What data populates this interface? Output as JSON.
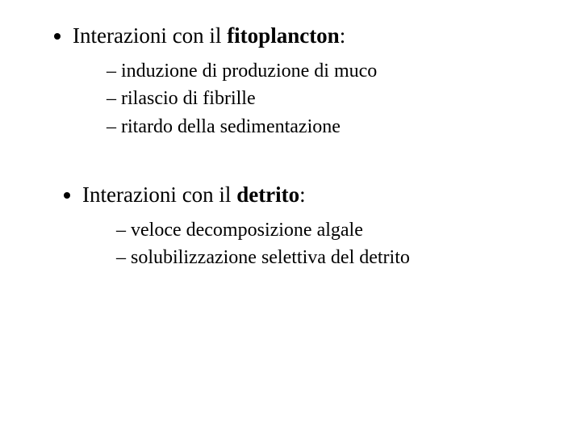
{
  "typography": {
    "font_family": "Times New Roman",
    "level1_fontsize_pt": 20,
    "level2_fontsize_pt": 18,
    "text_color": "#000000",
    "background_color": "#ffffff"
  },
  "sections": [
    {
      "prefix": "Interazioni con il ",
      "bold_term": "fitoplancton",
      "suffix": ":",
      "items": [
        "induzione di produzione di muco",
        "rilascio di fibrille",
        "ritardo della sedimentazione"
      ]
    },
    {
      "prefix": "Interazioni con il ",
      "bold_term": "detrito",
      "suffix": ":",
      "items": [
        "veloce decomposizione algale",
        "solubilizzazione selettiva del detrito"
      ]
    }
  ]
}
